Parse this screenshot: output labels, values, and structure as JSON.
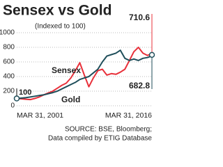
{
  "chart_data": {
    "type": "line",
    "title": "Sensex vs Gold",
    "subtitle": "(Indexed to 100)",
    "categories": [
      "MAR 31, 2001",
      null,
      null,
      null,
      null,
      null,
      null,
      null,
      null,
      null,
      null,
      null,
      null,
      null,
      null,
      null,
      null,
      null,
      null,
      null,
      null,
      null,
      null,
      null,
      null,
      null,
      null,
      null,
      null,
      null,
      "MAR 31, 2016"
    ],
    "series": [
      {
        "name": "Sensex",
        "color": "#e8303a",
        "values": [
          100,
          95,
          90,
          85,
          100,
          120,
          150,
          175,
          200,
          240,
          280,
          310,
          380,
          480,
          590,
          420,
          260,
          380,
          480,
          500,
          420,
          440,
          430,
          460,
          500,
          620,
          740,
          800,
          720,
          690,
          710.6
        ]
      },
      {
        "name": "Gold",
        "color": "#1f4e5a",
        "values": [
          100,
          105,
          110,
          120,
          130,
          140,
          150,
          165,
          180,
          200,
          230,
          260,
          290,
          320,
          360,
          380,
          400,
          450,
          500,
          600,
          680,
          700,
          720,
          760,
          650,
          620,
          640,
          620,
          650,
          660,
          682.8
        ]
      }
    ],
    "ylim": [
      0,
      1000
    ],
    "yticks": [
      0,
      200,
      400,
      600,
      800,
      1000
    ],
    "grid": true,
    "source": [
      "SOURCE: BSE, Bloomberg;",
      "Data compiled by ETIG Database"
    ]
  }
}
